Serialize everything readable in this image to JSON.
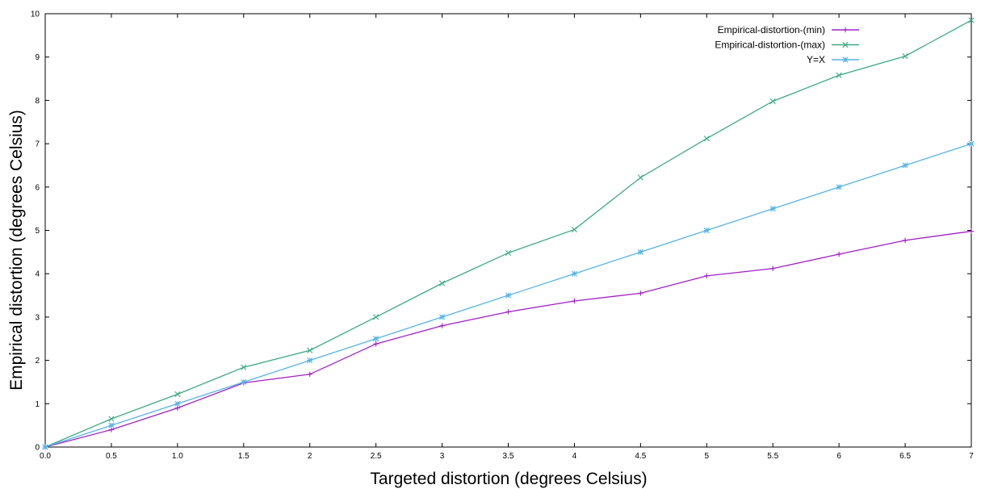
{
  "chart_data": {
    "type": "line",
    "title": "",
    "xlabel": "Targeted distortion (degrees Celsius)",
    "ylabel": "Empirical distortion (degrees Celsius)",
    "xlim": [
      0,
      7
    ],
    "ylim": [
      0,
      10
    ],
    "x_ticks": [
      "0.0",
      "0.5",
      "1.0",
      "1.5",
      "2",
      "2.5",
      "3",
      "3.5",
      "4",
      "4.5",
      "5",
      "5.5",
      "6",
      "6.5",
      "7"
    ],
    "y_ticks": [
      "0",
      "1",
      "2",
      "3",
      "4",
      "5",
      "6",
      "7",
      "8",
      "9",
      "10"
    ],
    "grid": false,
    "legend_position": "top-right",
    "x": [
      0,
      0.5,
      1,
      1.5,
      2,
      2.5,
      3,
      3.5,
      4,
      4.5,
      5,
      5.5,
      6,
      6.5,
      7
    ],
    "series": [
      {
        "name": "Empirical-distortion-(min)",
        "color": "#a020c8",
        "marker": "plus",
        "values": [
          0,
          0.4,
          0.9,
          1.48,
          1.68,
          2.38,
          2.8,
          3.12,
          3.37,
          3.55,
          3.95,
          4.12,
          4.45,
          4.77,
          4.98
        ]
      },
      {
        "name": "Empirical-distortion-(max)",
        "color": "#3caa82",
        "marker": "cross",
        "values": [
          0,
          0.65,
          1.22,
          1.84,
          2.23,
          3.0,
          3.78,
          4.48,
          5.02,
          6.22,
          7.12,
          7.98,
          8.58,
          9.02,
          9.85
        ]
      },
      {
        "name": "Y=X",
        "color": "#56b4e9",
        "marker": "star",
        "values": [
          0,
          0.5,
          1.0,
          1.5,
          2.0,
          2.5,
          3.0,
          3.5,
          4.0,
          4.5,
          5.0,
          5.5,
          6.0,
          6.5,
          7.0
        ]
      }
    ]
  }
}
